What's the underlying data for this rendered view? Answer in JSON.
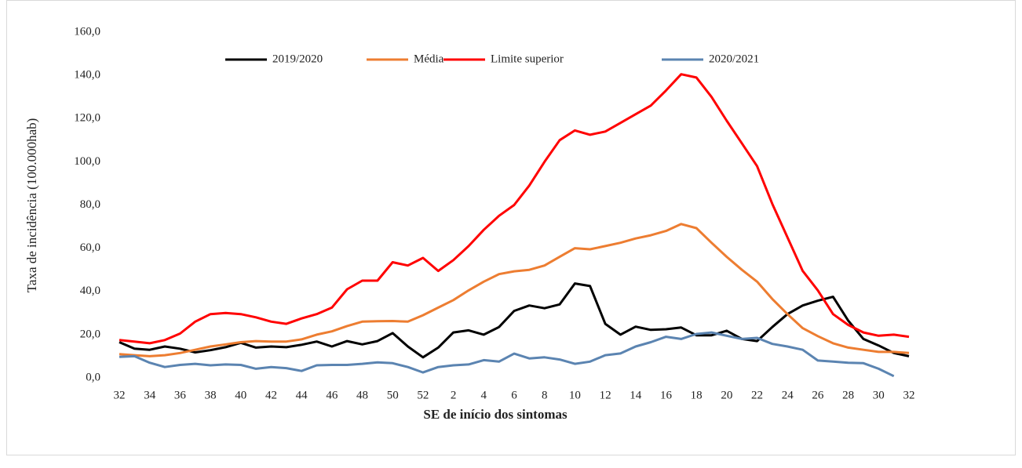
{
  "chart_data": {
    "type": "line",
    "y_label": "Taxa de incidência (100.000hab)",
    "x_label": "SE de início dos sintomas",
    "categories": [
      "32",
      null,
      "34",
      null,
      "36",
      null,
      "38",
      null,
      "40",
      null,
      "42",
      null,
      "44",
      null,
      "46",
      null,
      "48",
      null,
      "50",
      null,
      "52",
      null,
      "2",
      null,
      "4",
      null,
      "6",
      null,
      "8",
      null,
      "10",
      null,
      "12",
      null,
      "14",
      null,
      "16",
      null,
      "18",
      null,
      "20",
      null,
      "22",
      null,
      "24",
      null,
      "26",
      null,
      "28",
      null,
      "30",
      null,
      "32"
    ],
    "series": [
      {
        "name": "2019/2020",
        "color": "#000000",
        "values": [
          16.5,
          13.5,
          13,
          14.5,
          13.5,
          11.8,
          12.8,
          14.2,
          16.2,
          14,
          14.5,
          14.2,
          15.3,
          16.8,
          14.5,
          17,
          15.5,
          17,
          20.7,
          14.5,
          9.5,
          14,
          21,
          22,
          20,
          23.5,
          31,
          33.5,
          32.2,
          34,
          43.7,
          42.5,
          25,
          20,
          23.7,
          22.2,
          22.5,
          23.3,
          19.7,
          19.7,
          21.8,
          18,
          17,
          23.5,
          29.5,
          33.5,
          35.7,
          37.5,
          26.5,
          18,
          15,
          11.5,
          10
        ]
      },
      {
        "name": "Média",
        "color": "#ed7d31",
        "values": [
          11,
          10.5,
          10,
          10.5,
          11.5,
          13,
          14.5,
          15.5,
          16.5,
          17,
          16.8,
          16.8,
          17.8,
          20,
          21.5,
          24,
          26,
          26.2,
          26.3,
          26,
          29,
          32.5,
          36,
          40.5,
          44.5,
          48,
          49.3,
          50,
          52,
          56,
          60,
          59.5,
          61,
          62.5,
          64.5,
          66,
          68,
          71.2,
          69.3,
          62.5,
          56,
          50,
          44.5,
          36.5,
          29.5,
          23,
          19.3,
          16,
          14,
          13,
          12,
          12,
          11.5
        ]
      },
      {
        "name": "Limite superior",
        "color": "#ff0000",
        "values": [
          17.5,
          16.8,
          16,
          17.5,
          20.5,
          26,
          29.5,
          30,
          29.5,
          28,
          26,
          25,
          27.5,
          29.5,
          32.5,
          41,
          45,
          45,
          53.5,
          52,
          55.5,
          49.5,
          54.5,
          61,
          68.5,
          75,
          80,
          89,
          100,
          110,
          114.5,
          112.5,
          114,
          118,
          122,
          126,
          133,
          140.5,
          139,
          130,
          119,
          108.5,
          98,
          80.5,
          65,
          49.5,
          40.5,
          29.5,
          24.5,
          21,
          19.5,
          20,
          19
        ]
      },
      {
        "name": "2020/2021",
        "color": "#5b84b1",
        "values": [
          9.7,
          10,
          7,
          5,
          6,
          6.5,
          5.8,
          6.2,
          6,
          4.2,
          5,
          4.5,
          3.2,
          5.8,
          6,
          6,
          6.5,
          7.2,
          6.8,
          5,
          2.5,
          5,
          5.8,
          6.2,
          8.2,
          7.5,
          11.2,
          9,
          9.5,
          8.5,
          6.5,
          7.5,
          10.5,
          11.3,
          14.5,
          16.5,
          19,
          18,
          20.3,
          21,
          19.5,
          18,
          18.5,
          15.7,
          14.5,
          13,
          8,
          7.5,
          7,
          6.8,
          4.2,
          0.8,
          null
        ]
      }
    ],
    "ylim": [
      0,
      160
    ],
    "yticks": [
      {
        "value": 0,
        "label": "0,0"
      },
      {
        "value": 20,
        "label": "20,0"
      },
      {
        "value": 40,
        "label": "40,0"
      },
      {
        "value": 60,
        "label": "60,0"
      },
      {
        "value": 80,
        "label": "80,0"
      },
      {
        "value": 100,
        "label": "100,0"
      },
      {
        "value": 120,
        "label": "120,0"
      },
      {
        "value": 140,
        "label": "140,0"
      },
      {
        "value": 160,
        "label": "160,0"
      }
    ],
    "grid": false,
    "legend": "top"
  }
}
